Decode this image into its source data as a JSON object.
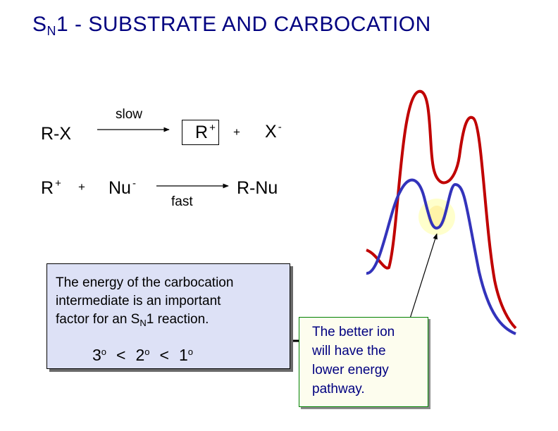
{
  "title": {
    "s": "S",
    "n": "N",
    "rest": "1  -  SUBSTRATE AND CARBOCATION"
  },
  "reaction1": {
    "reactant": "R-X",
    "arrow_label": "slow",
    "product1": "R",
    "product1_charge": "+",
    "plus": "+",
    "product2": "X",
    "product2_charge": "-"
  },
  "reaction2": {
    "reactant1": "R",
    "reactant1_charge": "+",
    "plus": "+",
    "reactant2": "Nu",
    "reactant2_charge": "-",
    "arrow_label": "fast",
    "product": "R-Nu"
  },
  "info_box": {
    "line1": "The energy of the carbocation",
    "line2": "intermediate is an important",
    "line3_a": "factor for  an  S",
    "line3_sub": "N",
    "line3_b": "1  reaction.",
    "order": {
      "d1": "3",
      "deg": "o",
      "lt": "<",
      "d2": "2",
      "d3": "1"
    }
  },
  "callout": {
    "line1": "The better ion",
    "line2": "will have the",
    "line3": "lower  energy",
    "line4": "pathway."
  },
  "colors": {
    "title": "#000080",
    "red_curve": "#c00000",
    "blue_curve": "#3333bb",
    "info_bg": "#dde1f6",
    "callout_border": "#008000",
    "callout_text": "#000080",
    "highlight": "#ffffcc"
  }
}
